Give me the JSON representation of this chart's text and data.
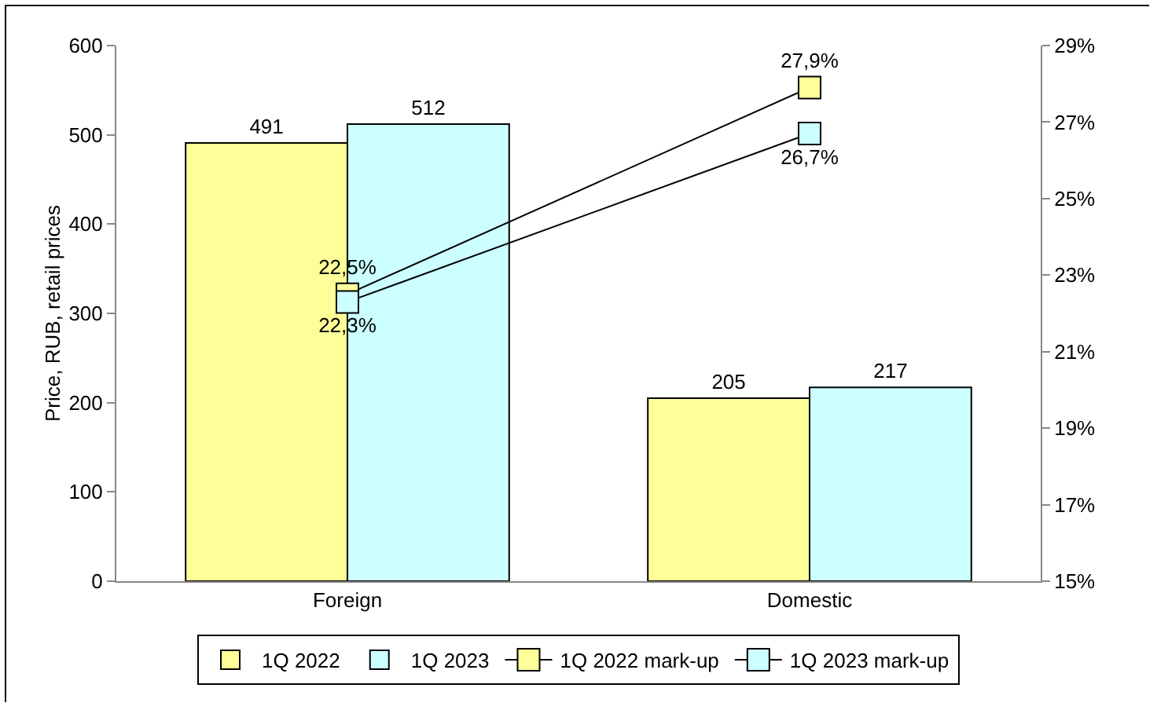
{
  "chart_data": {
    "type": "bar",
    "ylabel": "Price, RUB, retail prices",
    "categories": [
      "Foreign",
      "Domestic"
    ],
    "series": [
      {
        "name": "1Q 2022",
        "color": "#ffff99",
        "values": [
          491,
          205
        ],
        "value_labels": [
          "491",
          "205"
        ]
      },
      {
        "name": "1Q 2023",
        "color": "#ccffff",
        "values": [
          512,
          217
        ],
        "value_labels": [
          "512",
          "217"
        ]
      },
      {
        "name": "1Q 2022 mark-up",
        "type": "line",
        "axis": "y2",
        "color": "#ffff99",
        "values": [
          22.5,
          27.9
        ],
        "value_labels": [
          "22,5%",
          "27,9%"
        ]
      },
      {
        "name": "1Q 2023 mark-up",
        "type": "line",
        "axis": "y2",
        "color": "#ccffff",
        "values": [
          22.3,
          26.7
        ],
        "value_labels": [
          "22,3%",
          "26,7%"
        ]
      }
    ],
    "ylim": [
      0,
      600
    ],
    "yticks": [
      0,
      100,
      200,
      300,
      400,
      500,
      600
    ],
    "y2lim": [
      15,
      29
    ],
    "y2ticks": [
      {
        "value": 15,
        "label": "15%"
      },
      {
        "value": 17,
        "label": "17%"
      },
      {
        "value": 19,
        "label": "19%"
      },
      {
        "value": 21,
        "label": "21%"
      },
      {
        "value": 23,
        "label": "23%"
      },
      {
        "value": 25,
        "label": "25%"
      },
      {
        "value": 27,
        "label": "27%"
      },
      {
        "value": 29,
        "label": "29%"
      }
    ],
    "marker": "square",
    "line_style": "solid",
    "grid": false,
    "legend": "bottom"
  }
}
